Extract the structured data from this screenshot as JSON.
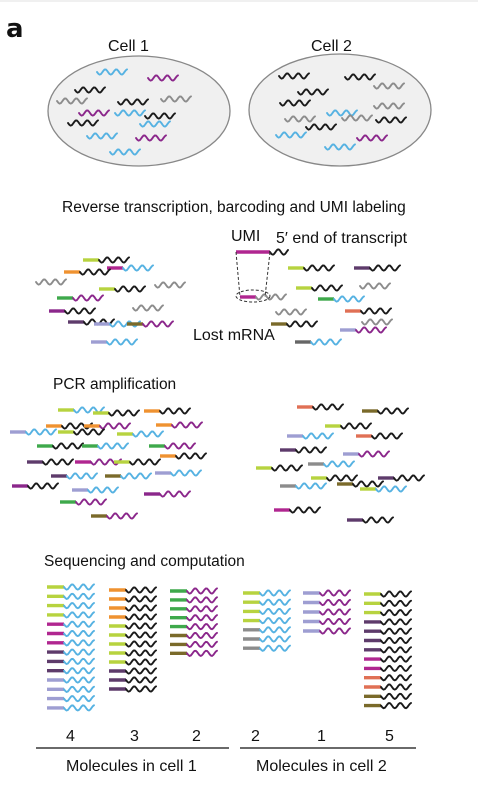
{
  "panel_label": "a",
  "cells": [
    {
      "label": "Cell 1"
    },
    {
      "label": "Cell 2"
    }
  ],
  "steps": {
    "step1": "Reverse transcription, barcoding and UMI labeling",
    "step2": "PCR amplification",
    "step3": "Sequencing and computation"
  },
  "annotations": {
    "umi": "UMI",
    "five_prime": "5′ end of transcript",
    "lost": "Lost mRNA"
  },
  "counts": {
    "cell1": [
      "4",
      "3",
      "2"
    ],
    "cell2": [
      "2",
      "1",
      "5"
    ]
  },
  "axis_labels": {
    "cell1": "Molecules in cell 1",
    "cell2": "Molecules in cell 2"
  },
  "colors": {
    "blue": "#56b2e2",
    "black": "#1a1a1a",
    "gray": "#8c8c8c",
    "purple": "#8b278b",
    "lime": "#b7d33f",
    "orange": "#ef9230",
    "green": "#3ea94b",
    "magenta": "#b02690",
    "plum": "#5e3b6b",
    "lavender": "#9e9ed2",
    "olive": "#7a6a2a",
    "coral": "#e07055",
    "darkgray": "#666666"
  }
}
